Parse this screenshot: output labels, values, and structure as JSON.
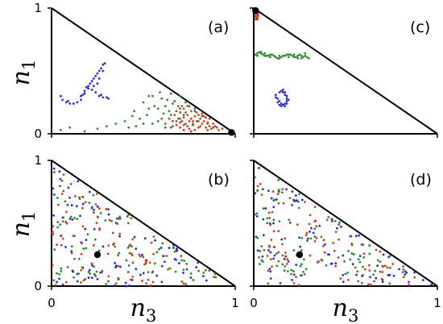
{
  "axes": {
    "xlabel": "n",
    "xlabel_sub": "3",
    "ylabel": "n",
    "ylabel_sub": "1",
    "x_ticks": [
      "0",
      "1"
    ],
    "y_ticks": [
      "1",
      "0"
    ]
  },
  "colors": {
    "blue": "#2b2bd6",
    "green": "#2f8a2f",
    "red": "#c8412b",
    "marker": "#000000"
  },
  "chart_data": [
    {
      "id": "a",
      "label": "(a)",
      "type": "scatter",
      "xlim": [
        0,
        1
      ],
      "ylim": [
        0,
        1
      ],
      "marker": {
        "x": 0.98,
        "y": 0.01
      },
      "series": [
        {
          "color": "blue",
          "points": [
            [
              0.05,
              0.3
            ],
            [
              0.06,
              0.27
            ],
            [
              0.08,
              0.25
            ],
            [
              0.1,
              0.24
            ],
            [
              0.12,
              0.24
            ],
            [
              0.14,
              0.25
            ],
            [
              0.16,
              0.27
            ],
            [
              0.17,
              0.31
            ],
            [
              0.18,
              0.34
            ],
            [
              0.19,
              0.37
            ],
            [
              0.2,
              0.38
            ],
            [
              0.21,
              0.4
            ],
            [
              0.22,
              0.42
            ],
            [
              0.23,
              0.44
            ],
            [
              0.24,
              0.46
            ],
            [
              0.25,
              0.48
            ],
            [
              0.26,
              0.5
            ],
            [
              0.27,
              0.52
            ],
            [
              0.28,
              0.55
            ],
            [
              0.29,
              0.56
            ],
            [
              0.2,
              0.36
            ],
            [
              0.22,
              0.35
            ],
            [
              0.24,
              0.33
            ],
            [
              0.26,
              0.3
            ],
            [
              0.28,
              0.29
            ],
            [
              0.3,
              0.29
            ],
            [
              0.31,
              0.28
            ],
            [
              0.27,
              0.31
            ],
            [
              0.09,
              0.26
            ],
            [
              0.25,
              0.4
            ],
            [
              0.23,
              0.38
            ],
            [
              0.26,
              0.44
            ],
            [
              0.28,
              0.5
            ],
            [
              0.18,
              0.32
            ],
            [
              0.16,
              0.3
            ]
          ]
        },
        {
          "color": "green",
          "points": [
            [
              0.05,
              0.03
            ],
            [
              0.1,
              0.05
            ],
            [
              0.18,
              0.02
            ],
            [
              0.25,
              0.04
            ],
            [
              0.3,
              0.06
            ],
            [
              0.35,
              0.08
            ],
            [
              0.4,
              0.1
            ],
            [
              0.42,
              0.05
            ],
            [
              0.45,
              0.18
            ],
            [
              0.48,
              0.12
            ],
            [
              0.5,
              0.25
            ],
            [
              0.52,
              0.15
            ],
            [
              0.55,
              0.3
            ],
            [
              0.55,
              0.08
            ],
            [
              0.58,
              0.2
            ],
            [
              0.6,
              0.28
            ],
            [
              0.6,
              0.12
            ],
            [
              0.62,
              0.22
            ],
            [
              0.62,
              0.05
            ],
            [
              0.65,
              0.32
            ],
            [
              0.65,
              0.15
            ],
            [
              0.67,
              0.26
            ],
            [
              0.68,
              0.1
            ],
            [
              0.7,
              0.2
            ],
            [
              0.7,
              0.3
            ],
            [
              0.72,
              0.15
            ],
            [
              0.72,
              0.07
            ],
            [
              0.75,
              0.22
            ],
            [
              0.76,
              0.12
            ],
            [
              0.78,
              0.18
            ],
            [
              0.8,
              0.1
            ],
            [
              0.82,
              0.14
            ],
            [
              0.85,
              0.08
            ],
            [
              0.88,
              0.05
            ],
            [
              0.56,
              0.22
            ],
            [
              0.58,
              0.1
            ],
            [
              0.64,
              0.18
            ],
            [
              0.66,
              0.06
            ],
            [
              0.7,
              0.12
            ],
            [
              0.5,
              0.08
            ],
            [
              0.46,
              0.06
            ],
            [
              0.53,
              0.2
            ],
            [
              0.59,
              0.33
            ],
            [
              0.63,
              0.27
            ],
            [
              0.73,
              0.25
            ],
            [
              0.77,
              0.08
            ],
            [
              0.44,
              0.14
            ],
            [
              0.61,
              0.16
            ],
            [
              0.69,
              0.22
            ],
            [
              0.66,
              0.24
            ],
            [
              0.53,
              0.3
            ]
          ]
        },
        {
          "color": "red",
          "points": [
            [
              0.62,
              0.08
            ],
            [
              0.64,
              0.12
            ],
            [
              0.65,
              0.05
            ],
            [
              0.66,
              0.1
            ],
            [
              0.67,
              0.15
            ],
            [
              0.68,
              0.07
            ],
            [
              0.69,
              0.12
            ],
            [
              0.7,
              0.17
            ],
            [
              0.7,
              0.05
            ],
            [
              0.71,
              0.1
            ],
            [
              0.72,
              0.2
            ],
            [
              0.72,
              0.13
            ],
            [
              0.73,
              0.08
            ],
            [
              0.74,
              0.15
            ],
            [
              0.74,
              0.22
            ],
            [
              0.75,
              0.1
            ],
            [
              0.75,
              0.04
            ],
            [
              0.76,
              0.18
            ],
            [
              0.76,
              0.12
            ],
            [
              0.77,
              0.07
            ],
            [
              0.78,
              0.14
            ],
            [
              0.78,
              0.2
            ],
            [
              0.79,
              0.1
            ],
            [
              0.8,
              0.05
            ],
            [
              0.8,
              0.15
            ],
            [
              0.81,
              0.12
            ],
            [
              0.82,
              0.08
            ],
            [
              0.82,
              0.16
            ],
            [
              0.83,
              0.1
            ],
            [
              0.84,
              0.05
            ],
            [
              0.84,
              0.13
            ],
            [
              0.85,
              0.09
            ],
            [
              0.86,
              0.06
            ],
            [
              0.86,
              0.12
            ],
            [
              0.87,
              0.04
            ],
            [
              0.88,
              0.08
            ],
            [
              0.89,
              0.06
            ],
            [
              0.9,
              0.05
            ],
            [
              0.91,
              0.03
            ],
            [
              0.93,
              0.04
            ],
            [
              0.68,
              0.18
            ],
            [
              0.71,
              0.22
            ],
            [
              0.73,
              0.17
            ],
            [
              0.77,
              0.1
            ],
            [
              0.79,
              0.17
            ],
            [
              0.81,
              0.06
            ],
            [
              0.83,
              0.14
            ],
            [
              0.74,
              0.06
            ],
            [
              0.76,
              0.02
            ],
            [
              0.7,
              0.09
            ],
            [
              0.78,
              0.03
            ],
            [
              0.85,
              0.03
            ],
            [
              0.72,
              0.03
            ]
          ]
        }
      ]
    },
    {
      "id": "b",
      "label": "(b)",
      "type": "scatter",
      "xlim": [
        0,
        1
      ],
      "ylim": [
        0,
        1
      ],
      "marker": {
        "x": 0.25,
        "y": 0.25
      },
      "random_fill": {
        "colors": [
          "blue",
          "green",
          "red"
        ],
        "count_per_color": 90,
        "seed": 17
      }
    },
    {
      "id": "c",
      "label": "(c)",
      "type": "scatter",
      "xlim": [
        0,
        1
      ],
      "ylim": [
        0,
        1
      ],
      "marker": {
        "x": 0.01,
        "y": 0.98
      },
      "series": [
        {
          "color": "red",
          "points": [
            [
              0.01,
              0.97
            ],
            [
              0.01,
              0.96
            ],
            [
              0.015,
              0.95
            ],
            [
              0.01,
              0.94
            ],
            [
              0.02,
              0.93
            ],
            [
              0.015,
              0.92
            ],
            [
              0.01,
              0.91
            ],
            [
              0.02,
              0.95
            ],
            [
              0.025,
              0.94
            ],
            [
              0.02,
              0.92
            ],
            [
              0.01,
              0.93
            ],
            [
              0.025,
              0.96
            ],
            [
              0.015,
              0.97
            ],
            [
              0.02,
              0.91
            ]
          ]
        },
        {
          "color": "green",
          "points": [
            [
              0.01,
              0.63
            ],
            [
              0.02,
              0.64
            ],
            [
              0.03,
              0.65
            ],
            [
              0.04,
              0.64
            ],
            [
              0.05,
              0.63
            ],
            [
              0.06,
              0.62
            ],
            [
              0.07,
              0.62
            ],
            [
              0.08,
              0.62
            ],
            [
              0.09,
              0.63
            ],
            [
              0.1,
              0.63
            ],
            [
              0.11,
              0.62
            ],
            [
              0.12,
              0.61
            ],
            [
              0.13,
              0.6
            ],
            [
              0.14,
              0.6
            ],
            [
              0.15,
              0.61
            ],
            [
              0.16,
              0.62
            ],
            [
              0.17,
              0.62
            ],
            [
              0.18,
              0.63
            ],
            [
              0.19,
              0.63
            ],
            [
              0.2,
              0.63
            ],
            [
              0.21,
              0.62
            ],
            [
              0.22,
              0.61
            ],
            [
              0.23,
              0.61
            ],
            [
              0.24,
              0.62
            ],
            [
              0.25,
              0.63
            ],
            [
              0.26,
              0.62
            ],
            [
              0.27,
              0.61
            ],
            [
              0.28,
              0.62
            ],
            [
              0.29,
              0.61
            ],
            [
              0.3,
              0.6
            ],
            [
              0.02,
              0.62
            ],
            [
              0.04,
              0.65
            ],
            [
              0.06,
              0.64
            ],
            [
              0.09,
              0.61
            ],
            [
              0.14,
              0.62
            ],
            [
              0.19,
              0.61
            ],
            [
              0.24,
              0.6
            ],
            [
              0.28,
              0.64
            ],
            [
              0.26,
              0.6
            ],
            [
              0.22,
              0.63
            ]
          ]
        },
        {
          "color": "blue",
          "points": [
            [
              0.12,
              0.31
            ],
            [
              0.13,
              0.28
            ],
            [
              0.14,
              0.26
            ],
            [
              0.15,
              0.24
            ],
            [
              0.16,
              0.23
            ],
            [
              0.17,
              0.24
            ],
            [
              0.18,
              0.26
            ],
            [
              0.18,
              0.28
            ],
            [
              0.17,
              0.31
            ],
            [
              0.16,
              0.33
            ],
            [
              0.15,
              0.34
            ],
            [
              0.14,
              0.33
            ],
            [
              0.13,
              0.25
            ],
            [
              0.15,
              0.22
            ],
            [
              0.17,
              0.22
            ],
            [
              0.18,
              0.24
            ],
            [
              0.19,
              0.27
            ],
            [
              0.18,
              0.3
            ],
            [
              0.17,
              0.33
            ],
            [
              0.16,
              0.35
            ],
            [
              0.12,
              0.29
            ],
            [
              0.14,
              0.23
            ]
          ]
        }
      ]
    },
    {
      "id": "d",
      "label": "(d)",
      "type": "scatter",
      "xlim": [
        0,
        1
      ],
      "ylim": [
        0,
        1
      ],
      "marker": {
        "x": 0.25,
        "y": 0.25
      },
      "random_fill": {
        "colors": [
          "blue",
          "green",
          "red"
        ],
        "count_per_color": 90,
        "seed": 53
      }
    }
  ]
}
